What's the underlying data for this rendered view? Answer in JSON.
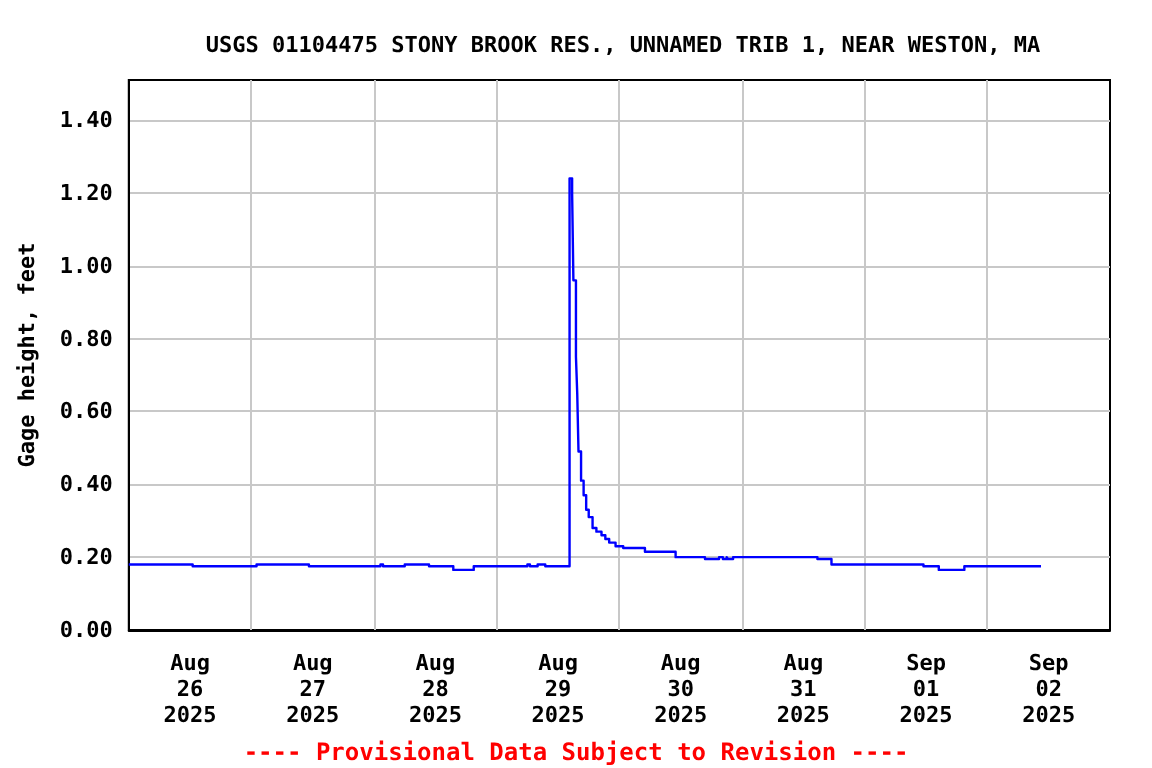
{
  "chart_data": {
    "type": "step",
    "title": "USGS 01104475 STONY BROOK RES., UNNAMED TRIB 1, NEAR WESTON, MA",
    "ylabel": "Gage height, feet",
    "annotations": [
      "---- Provisional Data Subject to Revision ----"
    ],
    "x": [
      "2025-08-26T00:00",
      "2025-08-26T12:30",
      "2025-08-27T01:00",
      "2025-08-27T11:15",
      "2025-08-28T01:15",
      "2025-08-28T01:45",
      "2025-08-28T06:00",
      "2025-08-28T10:45",
      "2025-08-28T15:30",
      "2025-08-28T19:30",
      "2025-08-29T06:00",
      "2025-08-29T06:30",
      "2025-08-29T08:00",
      "2025-08-29T09:30",
      "2025-08-29T14:15",
      "2025-08-29T14:45",
      "2025-08-29T15:00",
      "2025-08-29T15:30",
      "2025-08-29T15:45",
      "2025-08-29T16:00",
      "2025-08-29T16:30",
      "2025-08-29T17:00",
      "2025-08-29T17:30",
      "2025-08-29T18:00",
      "2025-08-29T18:45",
      "2025-08-29T19:30",
      "2025-08-29T20:30",
      "2025-08-29T21:15",
      "2025-08-29T22:00",
      "2025-08-29T23:15",
      "2025-08-30T00:45",
      "2025-08-30T05:00",
      "2025-08-30T11:00",
      "2025-08-30T16:45",
      "2025-08-30T19:30",
      "2025-08-30T20:15",
      "2025-08-30T21:00",
      "2025-08-30T21:15",
      "2025-08-30T22:15",
      "2025-08-31T14:45",
      "2025-08-31T17:30",
      "2025-09-01T11:30",
      "2025-09-01T14:30",
      "2025-09-01T19:30",
      "2025-09-02T10:30"
    ],
    "series": [
      {
        "color": "#0000ff",
        "values": [
          0.18,
          0.175,
          0.18,
          0.175,
          0.18,
          0.175,
          0.18,
          0.175,
          0.165,
          0.175,
          0.18,
          0.175,
          0.18,
          0.175,
          1.24,
          1.2,
          0.96,
          0.75,
          0.65,
          0.49,
          0.41,
          0.37,
          0.33,
          0.31,
          0.28,
          0.27,
          0.26,
          0.25,
          0.24,
          0.23,
          0.225,
          0.215,
          0.2,
          0.195,
          0.2,
          0.195,
          0.2,
          0.195,
          0.2,
          0.195,
          0.18,
          0.175,
          0.165,
          0.175,
          0.175
        ]
      }
    ],
    "xlim": [
      "2025-08-26T00:00",
      "2025-09-03T00:00"
    ],
    "xticks": [
      {
        "value": "2025-08-26T12:00",
        "label": "Aug\n26\n2025"
      },
      {
        "value": "2025-08-27T00:00",
        "label": null
      },
      {
        "value": "2025-08-27T12:00",
        "label": "Aug\n27\n2025"
      },
      {
        "value": "2025-08-28T00:00",
        "label": null
      },
      {
        "value": "2025-08-28T12:00",
        "label": "Aug\n28\n2025"
      },
      {
        "value": "2025-08-29T00:00",
        "label": null
      },
      {
        "value": "2025-08-29T12:00",
        "label": "Aug\n29\n2025"
      },
      {
        "value": "2025-08-30T00:00",
        "label": null
      },
      {
        "value": "2025-08-30T12:00",
        "label": "Aug\n30\n2025"
      },
      {
        "value": "2025-08-31T00:00",
        "label": null
      },
      {
        "value": "2025-08-31T12:00",
        "label": "Aug\n31\n2025"
      },
      {
        "value": "2025-09-01T00:00",
        "label": null
      },
      {
        "value": "2025-09-01T12:00",
        "label": "Sep\n01\n2025"
      },
      {
        "value": "2025-09-02T00:00",
        "label": null
      },
      {
        "value": "2025-09-02T12:00",
        "label": "Sep\n02\n2025"
      }
    ],
    "ylim": [
      0,
      1.51
    ],
    "yticks": [
      {
        "value": 0,
        "label": "0.00"
      },
      {
        "value": 0.2,
        "label": "0.20"
      },
      {
        "value": 0.4,
        "label": "0.40"
      },
      {
        "value": 0.6,
        "label": "0.60"
      },
      {
        "value": 0.8,
        "label": "0.80"
      },
      {
        "value": 1.0,
        "label": "1.00"
      },
      {
        "value": 1.2,
        "label": "1.20"
      },
      {
        "value": 1.4,
        "label": "1.40"
      }
    ],
    "grid": true
  }
}
